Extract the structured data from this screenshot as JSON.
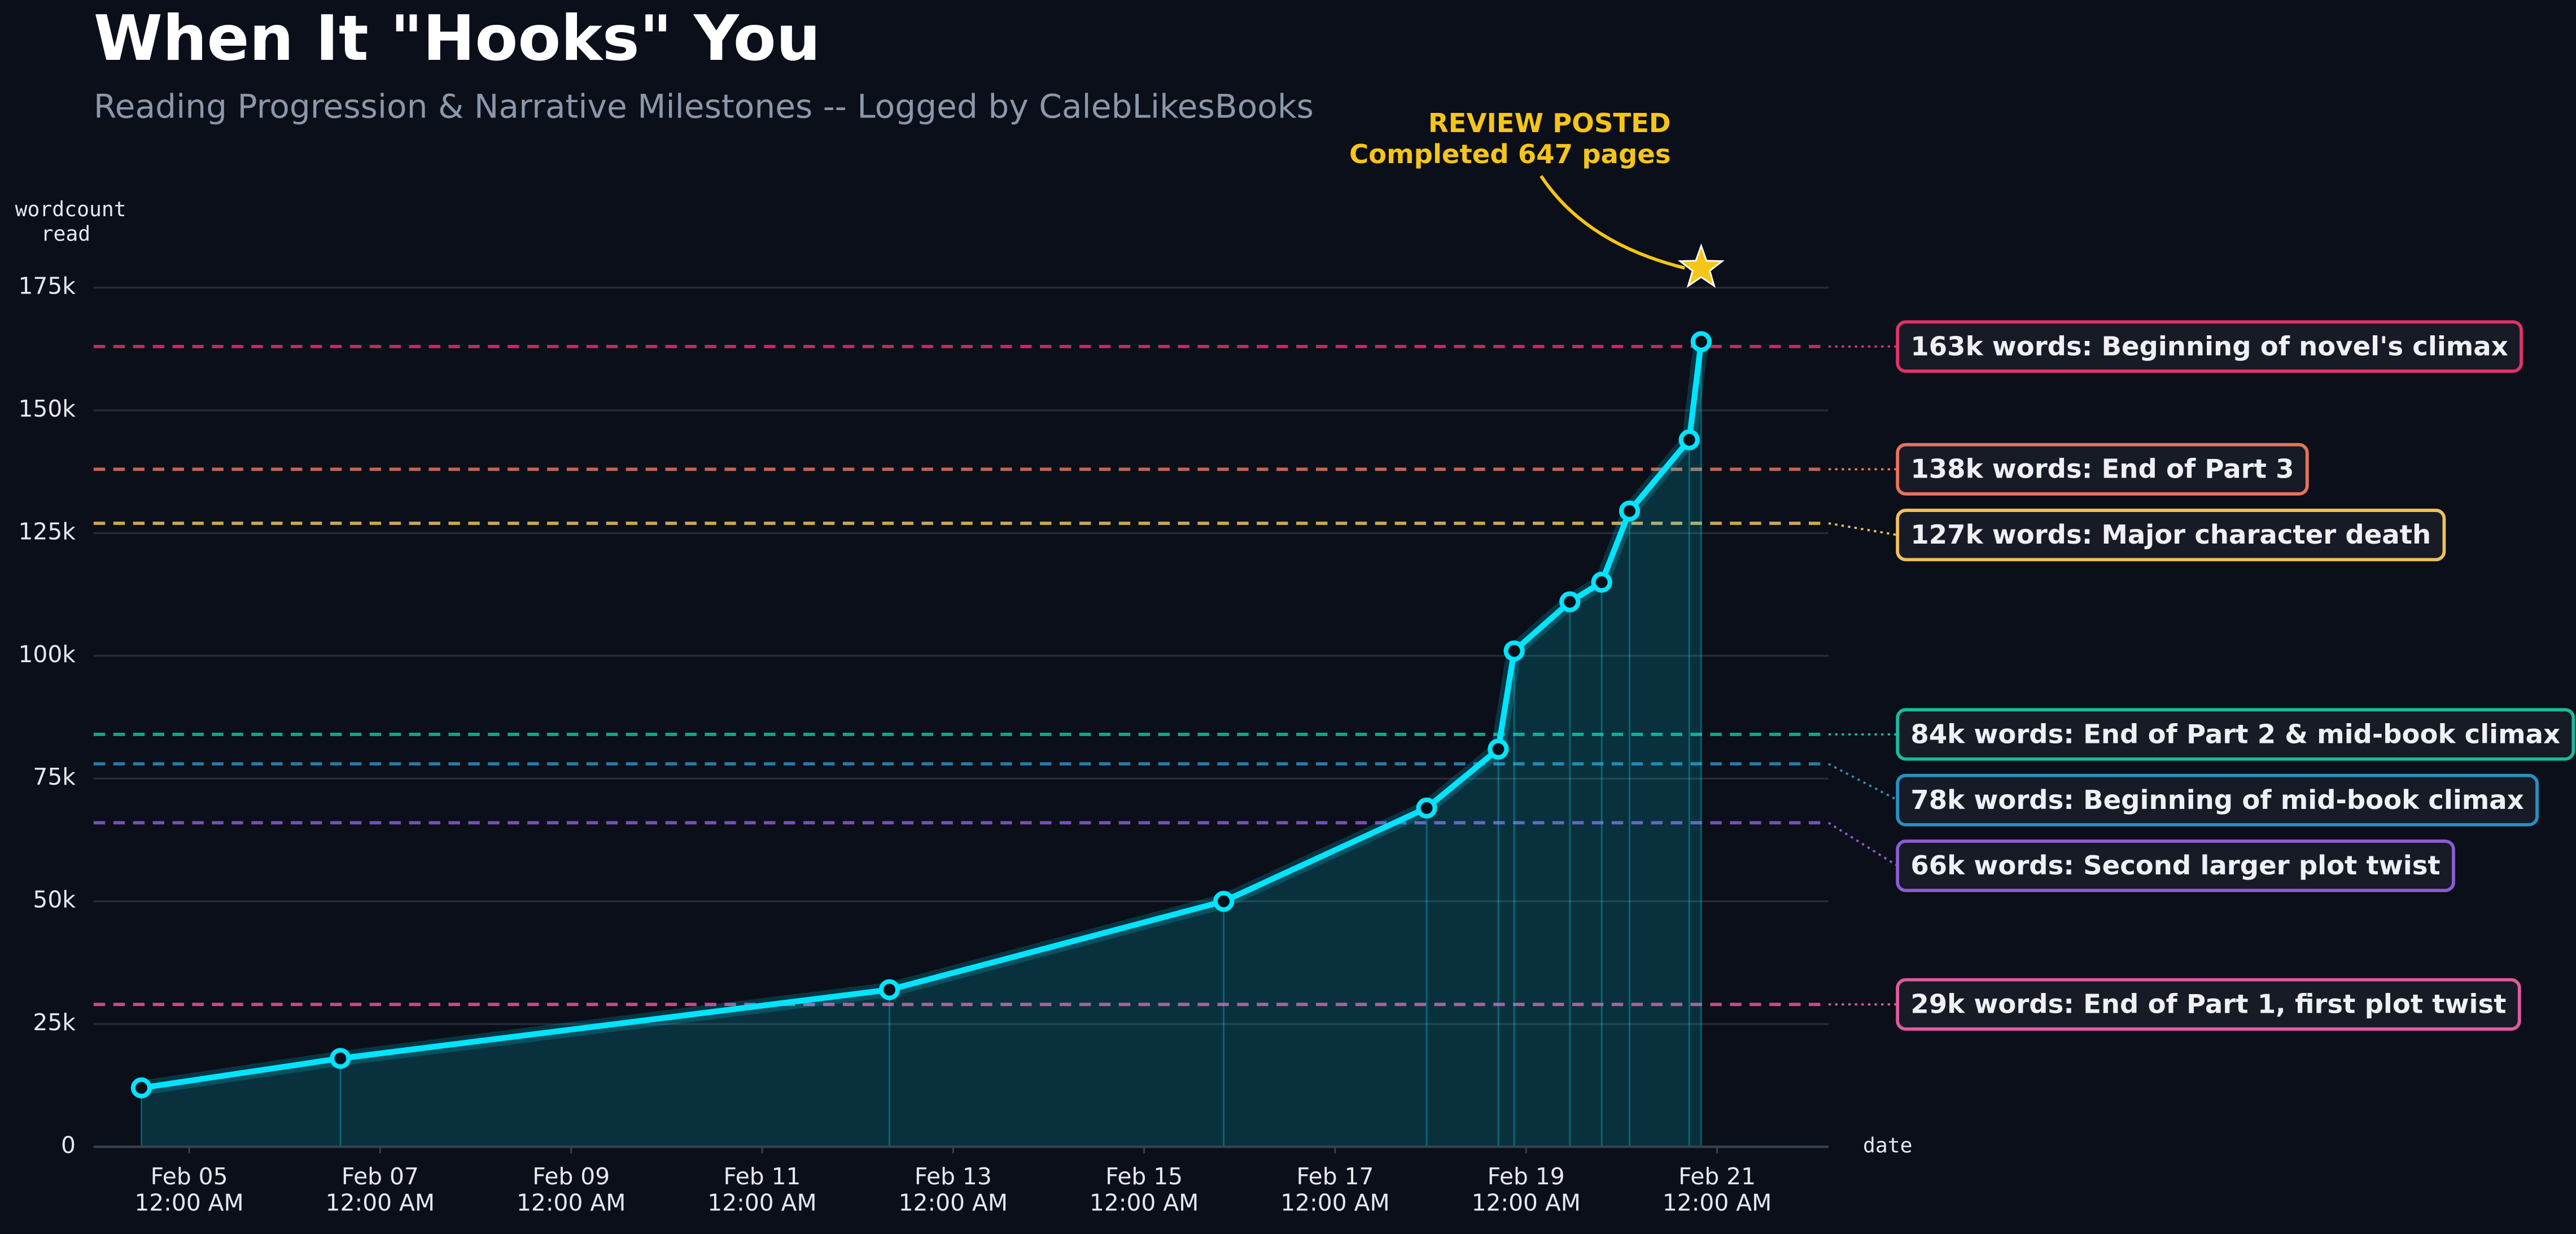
{
  "chart_data": {
    "type": "line",
    "title": "When It \"Hooks\" You",
    "subtitle": "Reading Progression & Narrative Milestones -- Logged by CalebLikesBooks",
    "ylabel": [
      "wordcount",
      "read"
    ],
    "xlabel": "date",
    "x": [
      "Feb 04 12:00 PM",
      "Feb 06 02:00 PM",
      "Feb 12 08:00 AM",
      "Feb 15 08:00 PM",
      "Feb 17 11:00 PM",
      "Feb 18 05:00 PM",
      "Feb 18 09:00 PM",
      "Feb 19 11:00 AM",
      "Feb 19 07:00 PM",
      "Feb 20 02:00 AM",
      "Feb 20 05:00 PM",
      "Feb 20 08:00 PM"
    ],
    "series": [
      {
        "name": "wordcount read",
        "color": "#00e5ff",
        "values": [
          12000,
          18000,
          32000,
          50000,
          69000,
          81000,
          101000,
          111000,
          115000,
          129500,
          144000,
          164000
        ]
      }
    ],
    "xlim": [
      "Feb 04 12:00 AM",
      "Feb 22 04:00 AM"
    ],
    "xticks": [
      {
        "value": "Feb 05 12:00 AM",
        "label": [
          "Feb 05",
          "12:00 AM"
        ]
      },
      {
        "value": "Feb 07 12:00 AM",
        "label": [
          "Feb 07",
          "12:00 AM"
        ]
      },
      {
        "value": "Feb 09 12:00 AM",
        "label": [
          "Feb 09",
          "12:00 AM"
        ]
      },
      {
        "value": "Feb 11 12:00 AM",
        "label": [
          "Feb 11",
          "12:00 AM"
        ]
      },
      {
        "value": "Feb 13 12:00 AM",
        "label": [
          "Feb 13",
          "12:00 AM"
        ]
      },
      {
        "value": "Feb 15 12:00 AM",
        "label": [
          "Feb 15",
          "12:00 AM"
        ]
      },
      {
        "value": "Feb 17 12:00 AM",
        "label": [
          "Feb 17",
          "12:00 AM"
        ]
      },
      {
        "value": "Feb 19 12:00 AM",
        "label": [
          "Feb 19",
          "12:00 AM"
        ]
      },
      {
        "value": "Feb 21 12:00 AM",
        "label": [
          "Feb 21",
          "12:00 AM"
        ]
      }
    ],
    "ylim": [
      0,
      175000
    ],
    "yticks": [
      0,
      {
        "value": 25000,
        "label": "25k"
      },
      {
        "value": 50000,
        "label": "50k"
      },
      {
        "value": 75000,
        "label": "75k"
      },
      {
        "value": 100000,
        "label": "100k"
      },
      {
        "value": 125000,
        "label": "125k"
      },
      {
        "value": 150000,
        "label": "150k"
      },
      {
        "value": 175000,
        "label": "175k"
      }
    ],
    "grid": true,
    "milestones": [
      {
        "value": 163000,
        "label": "163k words:  Beginning of novel's climax",
        "color": "#e0336a"
      },
      {
        "value": 138000,
        "label": "138k words:  End of Part 3",
        "color": "#e8735a"
      },
      {
        "value": 127000,
        "label": "127k words:  Major character death",
        "color": "#f0c05a"
      },
      {
        "value": 84000,
        "label": "84k words:  End of Part 2 & mid-book climax",
        "color": "#1abc9c"
      },
      {
        "value": 78000,
        "label": "78k words:  Beginning of mid-book climax",
        "color": "#2a8fbf"
      },
      {
        "value": 66000,
        "label": "66k words:  Second larger plot twist",
        "color": "#8e5bd6"
      },
      {
        "value": 29000,
        "label": "29k words:  End of Part 1, first plot twist",
        "color": "#e05aa0"
      }
    ],
    "annotation": {
      "text": [
        "REVIEW POSTED",
        "Completed 647 pages"
      ],
      "x": "Feb 20 08:00 PM",
      "y": 179000,
      "color": "#f5c518"
    }
  }
}
